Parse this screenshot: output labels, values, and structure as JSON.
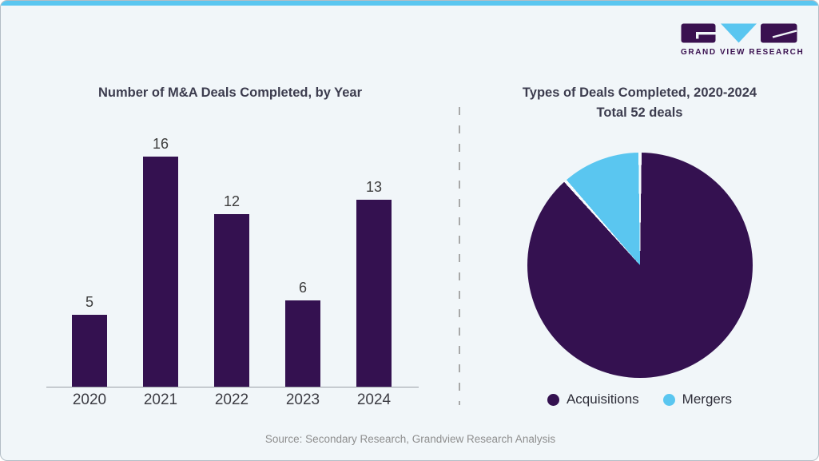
{
  "logo": {
    "brand_text": "GRAND VIEW RESEARCH"
  },
  "colors": {
    "purple": "#341150",
    "cyan": "#5ac6f0",
    "card_background": "#f1f6f9",
    "topbar": "#5ac6f0",
    "separator_white": "#f7fbfd"
  },
  "footer": {
    "source_text": "Source: Secondary Research, Grandview Research Analysis"
  },
  "chart_data": [
    {
      "type": "bar",
      "title": "Number of M&A Deals Completed, by Year",
      "categories": [
        "2020",
        "2021",
        "2022",
        "2023",
        "2024"
      ],
      "values": [
        5,
        16,
        12,
        6,
        13
      ],
      "bar_color": "#341150",
      "xlabel": "",
      "ylabel": "",
      "ylim": [
        0,
        17
      ],
      "grid": false,
      "value_labels_shown": true,
      "legend_position": "none"
    },
    {
      "type": "pie",
      "title": "Types of Deals Completed, 2020-2024",
      "subtitle": "Total 52 deals",
      "total": 52,
      "slices": [
        {
          "label": "Acquisitions",
          "value": 46,
          "color": "#341150"
        },
        {
          "label": "Mergers",
          "value": 6,
          "color": "#5ac6f0"
        }
      ],
      "start_angle": "top, clockwise",
      "legend_position": "bottom"
    }
  ]
}
